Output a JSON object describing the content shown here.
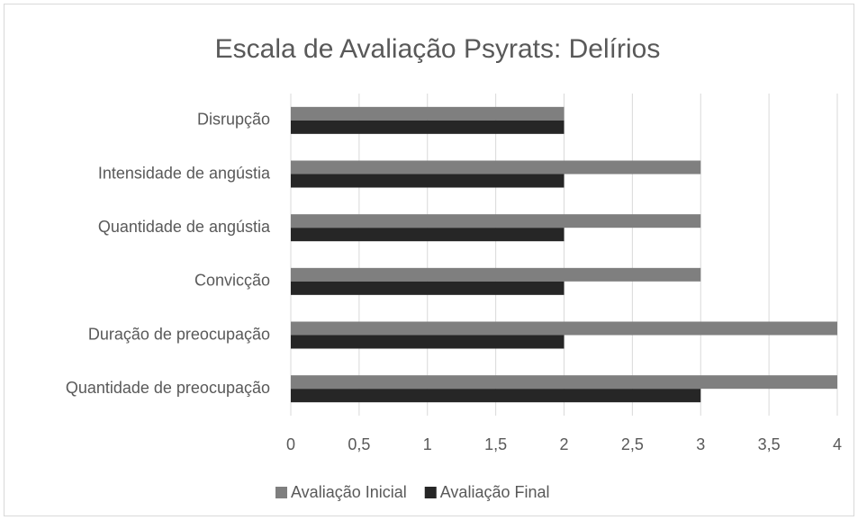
{
  "chart_data": {
    "type": "bar",
    "orientation": "horizontal",
    "title": "Escala de Avaliação Psyrats: Delírios",
    "categories": [
      "Disrupção",
      "Intensidade de angústia",
      "Quantidade de angústia",
      "Convicção",
      "Duração de preocupação",
      "Quantidade de preocupação"
    ],
    "series": [
      {
        "name": "Avaliação Inicial",
        "color": "#7f7f7f",
        "values": [
          2,
          3,
          3,
          3,
          4,
          4
        ]
      },
      {
        "name": "Avaliação Final",
        "color": "#262626",
        "values": [
          2,
          2,
          2,
          2,
          2,
          3
        ]
      }
    ],
    "xlim": [
      0,
      4
    ],
    "xticks": [
      0,
      {
        "value": 0.5,
        "label": "0,5"
      },
      1,
      {
        "value": 1.5,
        "label": "1,5"
      },
      2,
      {
        "value": 2.5,
        "label": "2,5"
      },
      3,
      {
        "value": 3.5,
        "label": "3,5"
      },
      4
    ],
    "grid": true,
    "legend": "bottom"
  }
}
